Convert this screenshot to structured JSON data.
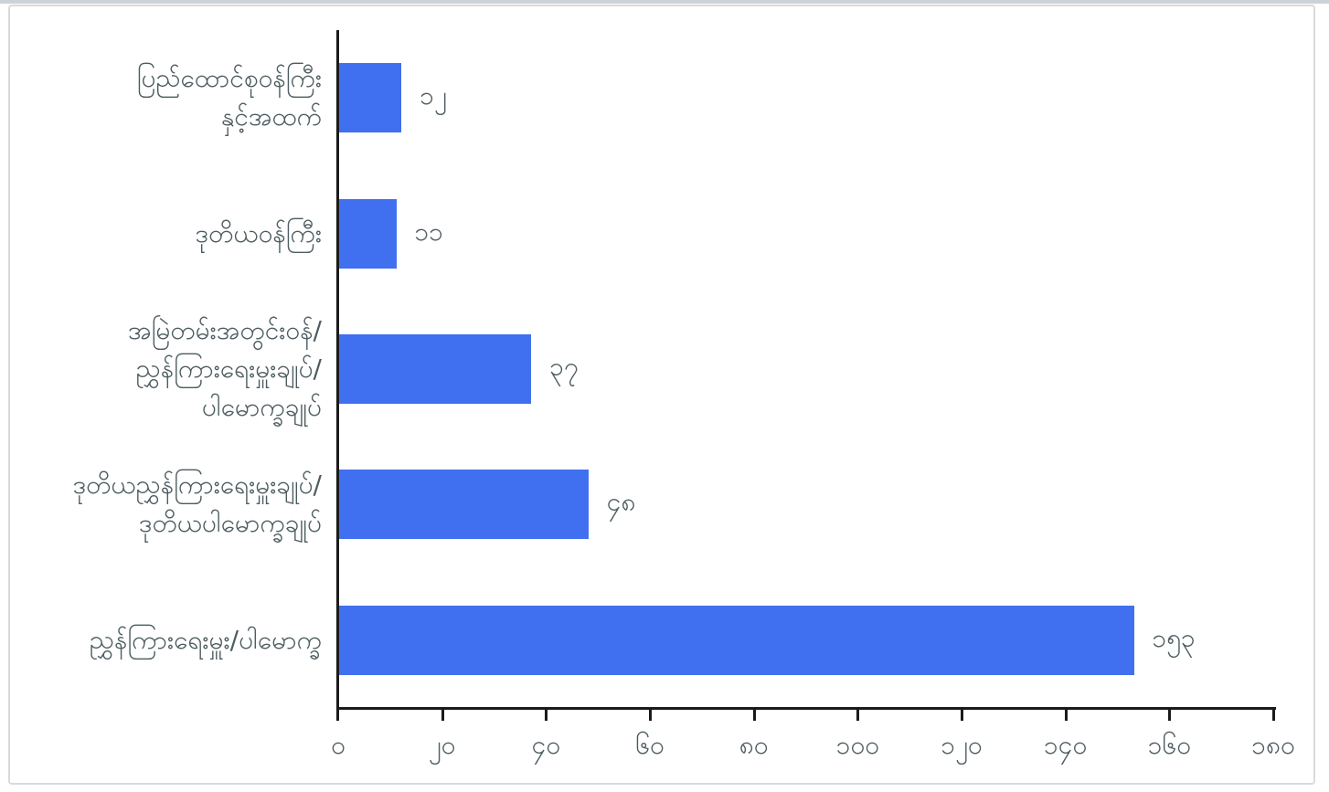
{
  "chart_data": {
    "type": "bar",
    "orientation": "horizontal",
    "title": "",
    "xlabel": "",
    "ylabel": "",
    "grid": false,
    "legend": false,
    "xlim": [
      0,
      180
    ],
    "xtick_values": [
      0,
      20,
      40,
      60,
      80,
      100,
      120,
      140,
      160,
      180
    ],
    "xtick_labels": [
      "၀",
      "၂၀",
      "၄၀",
      "၆၀",
      "၈၀",
      "၁၀၀",
      "၁၂၀",
      "၁၄၀",
      "၁၆၀",
      "၁၈၀"
    ],
    "categories": [
      {
        "label": "ပြည်ထောင်စုဝန်ကြီး နှင့်အထက်",
        "lines": [
          "ပြည်ထောင်စုဝန်ကြီး",
          "နှင့်အထက်"
        ]
      },
      {
        "label": "ဒုတိယဝန်ကြီး",
        "lines": [
          "ဒုတိယဝန်ကြီး"
        ]
      },
      {
        "label": "အမြဲတမ်းအတွင်းဝန်/ညွှန်ကြားရေးမှူးချုပ်/ပါမောက္ခချုပ်",
        "lines": [
          "အမြဲတမ်းအတွင်းဝန်/",
          "ညွှန်ကြားရေးမှူးချုပ်/",
          "ပါမောက္ခချုပ်"
        ]
      },
      {
        "label": "ဒုတိယညွှန်ကြားရေးမှူးချုပ်/ဒုတိယပါမောက္ခချုပ်",
        "lines": [
          "ဒုတိယညွှန်ကြားရေးမှူးချုပ်/",
          "ဒုတိယပါမောက္ခချုပ်"
        ]
      },
      {
        "label": "ညွှန်ကြားရေးမှူး/ပါမောက္ခ",
        "lines": [
          "ညွှန်ကြားရေးမှူး/ပါမောက္ခ"
        ]
      }
    ],
    "values": [
      12,
      11,
      37,
      48,
      153
    ],
    "value_labels": [
      "၁၂",
      "၁၁",
      "၃၇",
      "၄၈",
      "၁၅၃"
    ],
    "colors": {
      "bar": "#4070ef",
      "axis": "#1b1b1b",
      "text": "#4d5c60",
      "frame_border": "#d6dbde",
      "background": "#ffffff"
    }
  }
}
